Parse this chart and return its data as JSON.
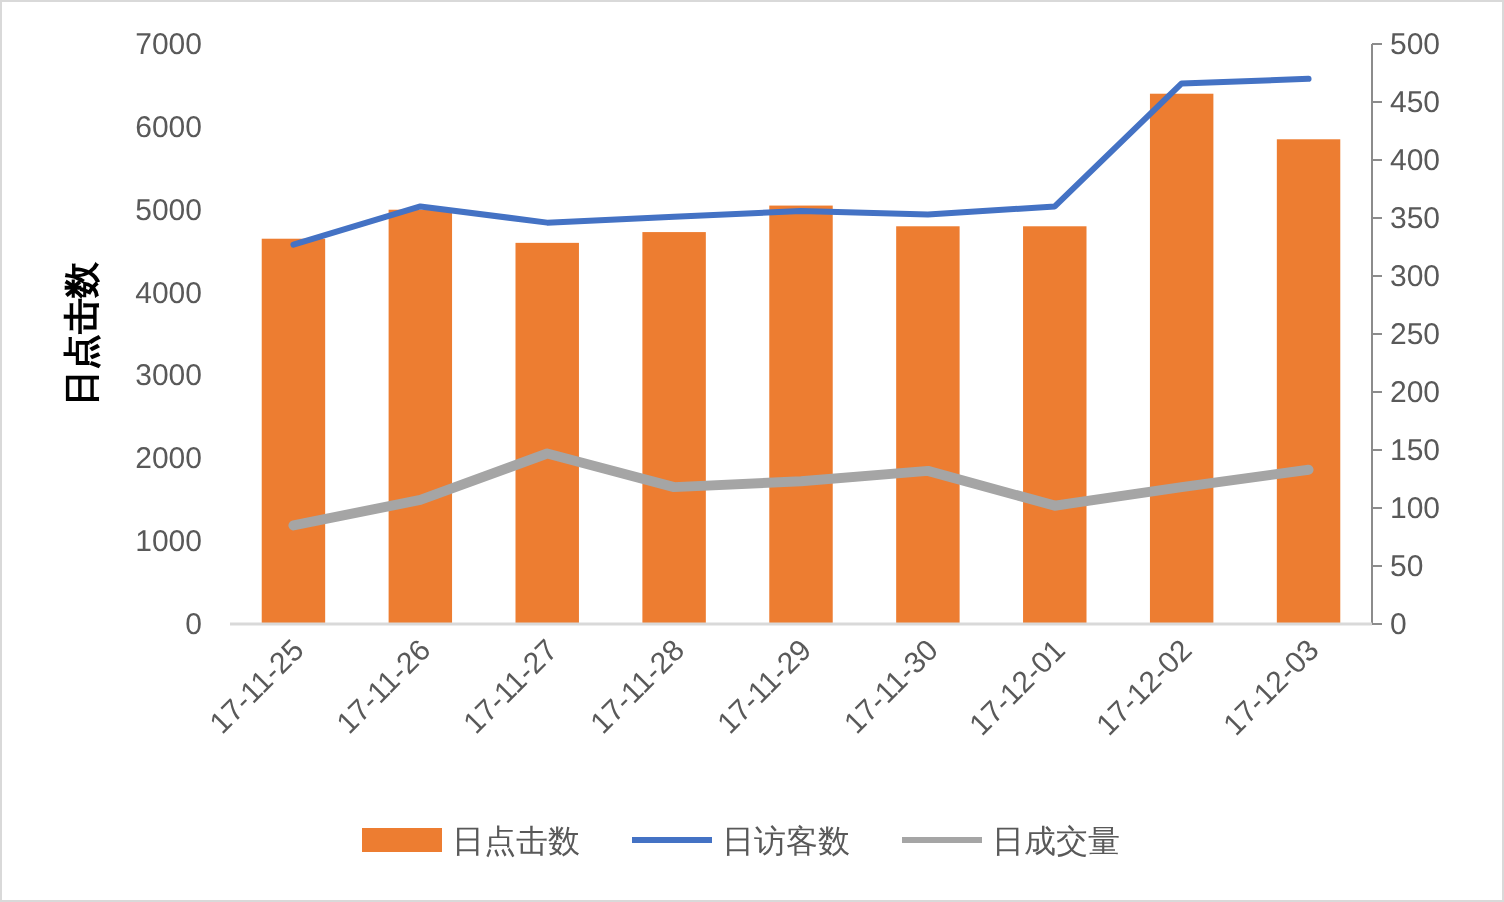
{
  "chart_data": {
    "type": "bar",
    "ylabel": "日点击数",
    "categories": [
      "17-11-25",
      "17-11-26",
      "17-11-27",
      "17-11-28",
      "17-11-29",
      "17-11-30",
      "17-12-01",
      "17-12-02",
      "17-12-03"
    ],
    "series": [
      {
        "name": "日点击数",
        "color": "#ed7d31",
        "values": [
          4650,
          5000,
          4600,
          4730,
          5050,
          4800,
          4800,
          6400,
          5850
        ]
      },
      {
        "name": "日访客数",
        "type": "line",
        "axis": "y2",
        "color": "#4472c4",
        "values": [
          327,
          360,
          346,
          351,
          356,
          353,
          360,
          466,
          470
        ]
      },
      {
        "name": "日成交量",
        "type": "line",
        "axis": "y2",
        "color": "#a5a5a5",
        "values": [
          85,
          107,
          147,
          118,
          123,
          132,
          102,
          118,
          133
        ]
      }
    ],
    "ylim": [
      0,
      7000
    ],
    "yticks": [
      0,
      1000,
      2000,
      3000,
      4000,
      5000,
      6000,
      7000
    ],
    "y2lim": [
      0,
      500
    ],
    "y2ticks": [
      0,
      50,
      100,
      150,
      200,
      250,
      300,
      350,
      400,
      450,
      500
    ],
    "legend": "bottom",
    "grid": false
  }
}
